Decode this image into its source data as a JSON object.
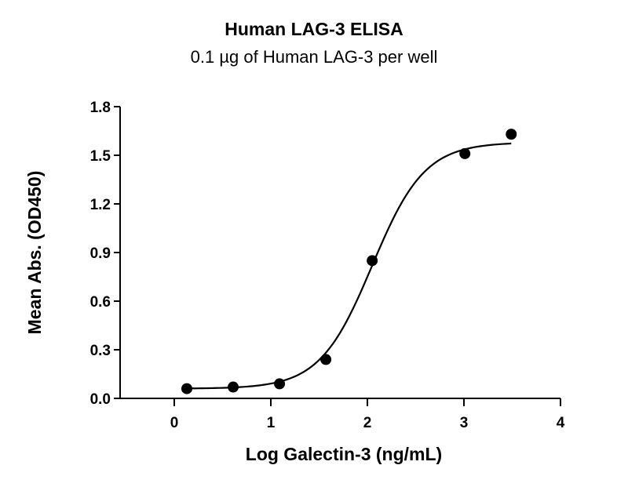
{
  "chart_data": {
    "type": "scatter",
    "title": "Human LAG-3 ELISA",
    "subtitle": "0.1 µg of Human LAG-3 per well",
    "xlabel": "Log Galectin-3 (ng/mL)",
    "ylabel": "Mean  Abs. (OD450)",
    "xlim": [
      0,
      4
    ],
    "ylim": [
      0,
      1.8
    ],
    "x_ticks": [
      "0",
      "1",
      "2",
      "3",
      "4"
    ],
    "y_ticks": [
      "0.0",
      "0.3",
      "0.6",
      "0.9",
      "1.2",
      "1.5",
      "1.8"
    ],
    "series": [
      {
        "points": [
          {
            "x": 0.13,
            "y": 0.06
          },
          {
            "x": 0.61,
            "y": 0.07
          },
          {
            "x": 1.09,
            "y": 0.09
          },
          {
            "x": 1.57,
            "y": 0.24
          },
          {
            "x": 2.05,
            "y": 0.85
          },
          {
            "x": 3.01,
            "y": 1.51
          },
          {
            "x": 3.49,
            "y": 1.63
          }
        ],
        "fit": {
          "model": "4PL",
          "bottom": 0.06,
          "top": 1.58,
          "log_ec50": 2.05,
          "hill_slope": 1.6
        }
      }
    ],
    "grid": false,
    "legend": "none"
  }
}
